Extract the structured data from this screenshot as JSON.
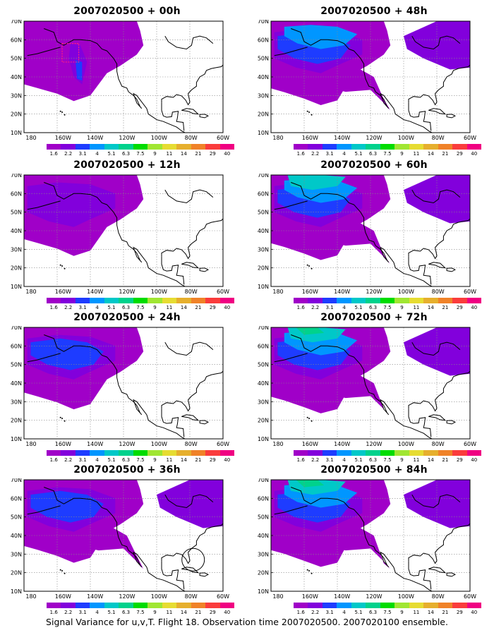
{
  "colors": {
    "scale": [
      "#a000c8",
      "#8200dc",
      "#1e3cff",
      "#0096ff",
      "#00c8c8",
      "#00d28c",
      "#00dc00",
      "#a0e632",
      "#e6dc32",
      "#e6af2d",
      "#f08228",
      "#fa3c3c",
      "#f00082"
    ],
    "ocean": "#ffffff",
    "coast": "#000000"
  },
  "colorbar": {
    "labels": [
      "1.6",
      "2.2",
      "3.1",
      "4",
      "5.1",
      "6.3",
      "7.5",
      "9",
      "11",
      "14",
      "21",
      "29",
      "40"
    ]
  },
  "axes": {
    "lat_labels": [
      "70N",
      "60N",
      "50N",
      "40N",
      "30N",
      "20N",
      "10N"
    ],
    "lon_labels": [
      "180",
      "160W",
      "140W",
      "120W",
      "100W",
      "80W",
      "60W"
    ]
  },
  "panels": [
    {
      "title": "2007020500 + 00h",
      "level": 0
    },
    {
      "title": "2007020500 + 48h",
      "level": 4
    },
    {
      "title": "2007020500 + 12h",
      "level": 1
    },
    {
      "title": "2007020500 + 60h",
      "level": 5
    },
    {
      "title": "2007020500 + 24h",
      "level": 2
    },
    {
      "title": "2007020500 + 72h",
      "level": 6
    },
    {
      "title": "2007020500 + 36h",
      "level": 3
    },
    {
      "title": "2007020500 + 84h",
      "level": 7
    }
  ],
  "caption": "Signal Variance for u,v,T. Flight 18. Observation time 2007020500. 2007020100 ensemble."
}
